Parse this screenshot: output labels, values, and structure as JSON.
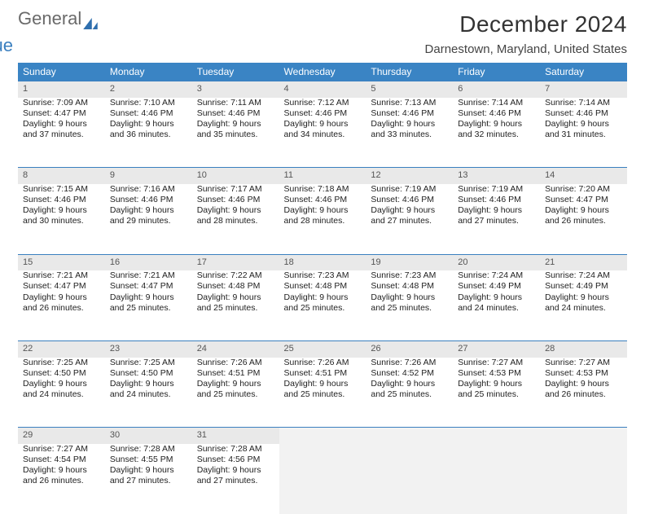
{
  "logo": {
    "word1": "General",
    "word2": "Blue",
    "accent_color": "#2f6fae",
    "gray_color": "#6a6a6a"
  },
  "title": "December 2024",
  "location": "Darnestown, Maryland, United States",
  "colors": {
    "header_bg": "#3a84c4",
    "header_text": "#ffffff",
    "daynum_bg": "#e9e9e9",
    "border": "#3a7fbf",
    "body_text": "#222222"
  },
  "day_headers": [
    "Sunday",
    "Monday",
    "Tuesday",
    "Wednesday",
    "Thursday",
    "Friday",
    "Saturday"
  ],
  "weeks": [
    [
      {
        "n": "1",
        "sr": "7:09 AM",
        "ss": "4:47 PM",
        "dl": "9 hours and 37 minutes."
      },
      {
        "n": "2",
        "sr": "7:10 AM",
        "ss": "4:46 PM",
        "dl": "9 hours and 36 minutes."
      },
      {
        "n": "3",
        "sr": "7:11 AM",
        "ss": "4:46 PM",
        "dl": "9 hours and 35 minutes."
      },
      {
        "n": "4",
        "sr": "7:12 AM",
        "ss": "4:46 PM",
        "dl": "9 hours and 34 minutes."
      },
      {
        "n": "5",
        "sr": "7:13 AM",
        "ss": "4:46 PM",
        "dl": "9 hours and 33 minutes."
      },
      {
        "n": "6",
        "sr": "7:14 AM",
        "ss": "4:46 PM",
        "dl": "9 hours and 32 minutes."
      },
      {
        "n": "7",
        "sr": "7:14 AM",
        "ss": "4:46 PM",
        "dl": "9 hours and 31 minutes."
      }
    ],
    [
      {
        "n": "8",
        "sr": "7:15 AM",
        "ss": "4:46 PM",
        "dl": "9 hours and 30 minutes."
      },
      {
        "n": "9",
        "sr": "7:16 AM",
        "ss": "4:46 PM",
        "dl": "9 hours and 29 minutes."
      },
      {
        "n": "10",
        "sr": "7:17 AM",
        "ss": "4:46 PM",
        "dl": "9 hours and 28 minutes."
      },
      {
        "n": "11",
        "sr": "7:18 AM",
        "ss": "4:46 PM",
        "dl": "9 hours and 28 minutes."
      },
      {
        "n": "12",
        "sr": "7:19 AM",
        "ss": "4:46 PM",
        "dl": "9 hours and 27 minutes."
      },
      {
        "n": "13",
        "sr": "7:19 AM",
        "ss": "4:46 PM",
        "dl": "9 hours and 27 minutes."
      },
      {
        "n": "14",
        "sr": "7:20 AM",
        "ss": "4:47 PM",
        "dl": "9 hours and 26 minutes."
      }
    ],
    [
      {
        "n": "15",
        "sr": "7:21 AM",
        "ss": "4:47 PM",
        "dl": "9 hours and 26 minutes."
      },
      {
        "n": "16",
        "sr": "7:21 AM",
        "ss": "4:47 PM",
        "dl": "9 hours and 25 minutes."
      },
      {
        "n": "17",
        "sr": "7:22 AM",
        "ss": "4:48 PM",
        "dl": "9 hours and 25 minutes."
      },
      {
        "n": "18",
        "sr": "7:23 AM",
        "ss": "4:48 PM",
        "dl": "9 hours and 25 minutes."
      },
      {
        "n": "19",
        "sr": "7:23 AM",
        "ss": "4:48 PM",
        "dl": "9 hours and 25 minutes."
      },
      {
        "n": "20",
        "sr": "7:24 AM",
        "ss": "4:49 PM",
        "dl": "9 hours and 24 minutes."
      },
      {
        "n": "21",
        "sr": "7:24 AM",
        "ss": "4:49 PM",
        "dl": "9 hours and 24 minutes."
      }
    ],
    [
      {
        "n": "22",
        "sr": "7:25 AM",
        "ss": "4:50 PM",
        "dl": "9 hours and 24 minutes."
      },
      {
        "n": "23",
        "sr": "7:25 AM",
        "ss": "4:50 PM",
        "dl": "9 hours and 24 minutes."
      },
      {
        "n": "24",
        "sr": "7:26 AM",
        "ss": "4:51 PM",
        "dl": "9 hours and 25 minutes."
      },
      {
        "n": "25",
        "sr": "7:26 AM",
        "ss": "4:51 PM",
        "dl": "9 hours and 25 minutes."
      },
      {
        "n": "26",
        "sr": "7:26 AM",
        "ss": "4:52 PM",
        "dl": "9 hours and 25 minutes."
      },
      {
        "n": "27",
        "sr": "7:27 AM",
        "ss": "4:53 PM",
        "dl": "9 hours and 25 minutes."
      },
      {
        "n": "28",
        "sr": "7:27 AM",
        "ss": "4:53 PM",
        "dl": "9 hours and 26 minutes."
      }
    ],
    [
      {
        "n": "29",
        "sr": "7:27 AM",
        "ss": "4:54 PM",
        "dl": "9 hours and 26 minutes."
      },
      {
        "n": "30",
        "sr": "7:28 AM",
        "ss": "4:55 PM",
        "dl": "9 hours and 27 minutes."
      },
      {
        "n": "31",
        "sr": "7:28 AM",
        "ss": "4:56 PM",
        "dl": "9 hours and 27 minutes."
      },
      null,
      null,
      null,
      null
    ]
  ],
  "labels": {
    "sunrise": "Sunrise:",
    "sunset": "Sunset:",
    "daylight": "Daylight:"
  }
}
